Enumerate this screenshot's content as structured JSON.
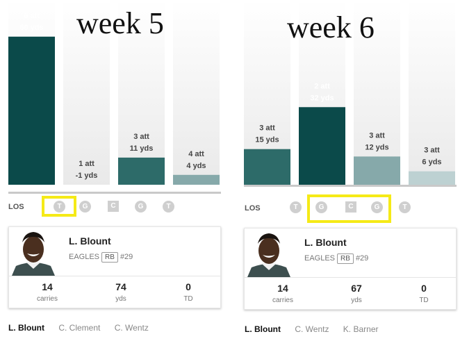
{
  "colors": {
    "dark_teal": "#0b4a4a",
    "mid_teal": "#2d6b69",
    "light_teal": "#86a9aa",
    "pale_teal": "#bdd1d2",
    "highlight_yellow": "#f5ea17",
    "line_grey": "#c9c9c9"
  },
  "chart_data": [
    {
      "type": "bar",
      "title": "week 5",
      "categories": [
        "gap-1",
        "gap-2",
        "gap-3",
        "gap-4"
      ],
      "series": [
        {
          "attempts": [
            6,
            1,
            3,
            4
          ],
          "values": [
            60,
            -1,
            11,
            4
          ]
        }
      ],
      "labels": [
        {
          "att": "6 att",
          "yds": "60 yds"
        },
        {
          "att": "1 att",
          "yds": "-1 yds"
        },
        {
          "att": "3 att",
          "yds": "11 yds"
        },
        {
          "att": "4 att",
          "yds": "4 yds"
        }
      ],
      "bar_shades": [
        "dark_teal",
        "none",
        "mid_teal",
        "light_teal"
      ],
      "los_label": "LOS",
      "line_positions": [
        "T",
        "G",
        "C",
        "G",
        "T"
      ],
      "highlighted": [
        0
      ]
    },
    {
      "type": "bar",
      "title": "week 6",
      "categories": [
        "gap-1",
        "gap-2",
        "gap-3",
        "gap-4"
      ],
      "series": [
        {
          "attempts": [
            3,
            2,
            3,
            3
          ],
          "values": [
            15,
            32,
            12,
            6
          ]
        }
      ],
      "labels": [
        {
          "att": "3 att",
          "yds": "15 yds"
        },
        {
          "att": "2 att",
          "yds": "32 yds"
        },
        {
          "att": "3 att",
          "yds": "12 yds"
        },
        {
          "att": "3 att",
          "yds": "6 yds"
        }
      ],
      "bar_shades": [
        "mid_teal",
        "dark_teal",
        "light_teal",
        "pale_teal"
      ],
      "los_label": "LOS",
      "line_positions": [
        "T",
        "G",
        "C",
        "G",
        "T"
      ],
      "highlighted": [
        1,
        2,
        3
      ]
    }
  ],
  "cards": [
    {
      "player_name": "L. Blount",
      "team": "EAGLES",
      "position": "RB",
      "number": "#29",
      "stats": [
        {
          "value": "14",
          "label": "carries"
        },
        {
          "value": "74",
          "label": "yds"
        },
        {
          "value": "0",
          "label": "TD"
        }
      ],
      "tabs": [
        "L. Blount",
        "C. Clement",
        "C. Wentz"
      ],
      "active_tab": 0
    },
    {
      "player_name": "L. Blount",
      "team": "EAGLES",
      "position": "RB",
      "number": "#29",
      "stats": [
        {
          "value": "14",
          "label": "carries"
        },
        {
          "value": "67",
          "label": "yds"
        },
        {
          "value": "0",
          "label": "TD"
        }
      ],
      "tabs": [
        "L. Blount",
        "C. Wentz",
        "K. Barner"
      ],
      "active_tab": 0
    }
  ]
}
